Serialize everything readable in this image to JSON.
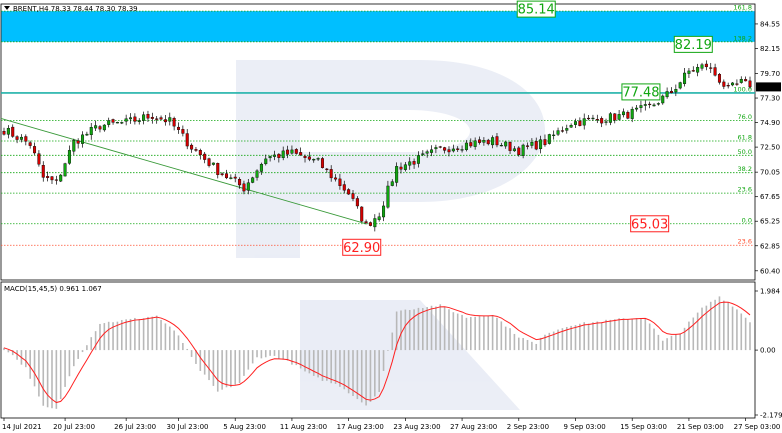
{
  "header": {
    "symbol_line": "BRENT,H4  78.33 78.44 78.30 78.39"
  },
  "macd_header": "MACD(15,45,5) 0.961 1.067",
  "colors": {
    "bull": "#11a611",
    "bear": "#d40000",
    "fib": "#11a611",
    "blue_zone": "#00bfff",
    "hline": "#20b2aa",
    "trend": "#3a9a3a",
    "macd_bar": "#b8b8b8",
    "signal": "#ff2020"
  },
  "chart_data": {
    "type": "candlestick",
    "title": "",
    "y_axis": {
      "min": 59.5,
      "max": 86.5,
      "ticks": [
        "84.55",
        "82.15",
        "79.70",
        "77.30",
        "74.90",
        "72.50",
        "70.05",
        "67.65",
        "65.25",
        "62.85",
        "60.40"
      ]
    },
    "x_axis": {
      "ticks": [
        "14 Jul 2021",
        "20 Jul 23:00",
        "26 Jul 23:00",
        "30 Jul 23:00",
        "5 Aug 23:00",
        "11 Aug 23:00",
        "17 Aug 23:00",
        "23 Aug 23:00",
        "27 Aug 23:00",
        "2 Sep 23:00",
        "9 Sep 03:00",
        "15 Sep 03:00",
        "21 Sep 03:00",
        "27 Sep 03:00"
      ]
    },
    "current_price": "78.39",
    "horizontal_line": 77.8,
    "blue_zone": {
      "from": 82.8,
      "to": 85.8
    },
    "fib_levels": [
      {
        "label": "161.8",
        "value": 85.8,
        "color": "#11a611"
      },
      {
        "label": "138.2",
        "value": 82.8,
        "color": "#11a611"
      },
      {
        "label": "100.0",
        "value": 77.8,
        "color": "#11a611"
      },
      {
        "label": "76.0",
        "value": 75.1,
        "color": "#11a611"
      },
      {
        "label": "61.8",
        "value": 73.1,
        "color": "#11a611"
      },
      {
        "label": "50.0",
        "value": 71.7,
        "color": "#11a611"
      },
      {
        "label": "38.2",
        "value": 70.0,
        "color": "#11a611"
      },
      {
        "label": "23.6",
        "value": 68.0,
        "color": "#11a611"
      },
      {
        "label": "0.0",
        "value": 65.0,
        "color": "#11a611"
      },
      {
        "label": "23.6",
        "value": 62.9,
        "color": "#ff5030"
      }
    ],
    "boxes": [
      {
        "text": "85.14",
        "price": 86.0,
        "xi": 122,
        "color": "#11a611"
      },
      {
        "text": "82.19",
        "price": 82.55,
        "xi": 158,
        "color": "#11a611"
      },
      {
        "text": "77.48",
        "price": 77.9,
        "xi": 146,
        "color": "#11a611"
      },
      {
        "text": "65.03",
        "price": 65.0,
        "xi": 148,
        "color": "#ff2020"
      },
      {
        "text": "62.90",
        "price": 62.7,
        "xi": 82,
        "color": "#ff2020"
      }
    ],
    "anchors": [
      [
        0,
        74.2
      ],
      [
        6,
        72.8
      ],
      [
        9,
        69.5
      ],
      [
        12,
        69.0
      ],
      [
        16,
        73.0
      ],
      [
        22,
        74.6
      ],
      [
        28,
        74.9
      ],
      [
        34,
        75.6
      ],
      [
        38,
        75.0
      ],
      [
        43,
        72.5
      ],
      [
        49,
        70.2
      ],
      [
        55,
        68.5
      ],
      [
        60,
        71.5
      ],
      [
        66,
        71.9
      ],
      [
        72,
        71.0
      ],
      [
        79,
        68.0
      ],
      [
        83,
        64.8
      ],
      [
        86,
        66.0
      ],
      [
        90,
        70.5
      ],
      [
        95,
        71.3
      ],
      [
        100,
        72.3
      ],
      [
        106,
        72.8
      ],
      [
        112,
        73.1
      ],
      [
        118,
        72.2
      ],
      [
        124,
        73.0
      ],
      [
        130,
        74.9
      ],
      [
        136,
        75.2
      ],
      [
        142,
        75.6
      ],
      [
        148,
        76.4
      ],
      [
        153,
        77.9
      ],
      [
        157,
        79.9
      ],
      [
        161,
        80.5
      ],
      [
        163,
        79.6
      ],
      [
        166,
        78.1
      ],
      [
        169,
        78.8
      ],
      [
        171,
        78.39
      ]
    ],
    "macd": {
      "range": [
        -2.179,
        1.984
      ],
      "ticks": [
        "1.984",
        "0.00",
        "-2.179"
      ],
      "anchors": [
        [
          0,
          0.1
        ],
        [
          5,
          -0.6
        ],
        [
          9,
          -1.9
        ],
        [
          12,
          -2.0
        ],
        [
          16,
          -0.5
        ],
        [
          22,
          0.9
        ],
        [
          30,
          1.05
        ],
        [
          35,
          1.15
        ],
        [
          40,
          0.5
        ],
        [
          44,
          -0.5
        ],
        [
          49,
          -1.4
        ],
        [
          54,
          -1.1
        ],
        [
          58,
          -0.25
        ],
        [
          62,
          -0.2
        ],
        [
          66,
          -0.45
        ],
        [
          71,
          -0.9
        ],
        [
          77,
          -1.2
        ],
        [
          83,
          -1.85
        ],
        [
          86,
          -1.4
        ],
        [
          90,
          1.3
        ],
        [
          96,
          1.45
        ],
        [
          100,
          1.5
        ],
        [
          106,
          1.1
        ],
        [
          112,
          1.2
        ],
        [
          118,
          0.45
        ],
        [
          122,
          0.2
        ],
        [
          124,
          0.55
        ],
        [
          130,
          0.85
        ],
        [
          136,
          0.95
        ],
        [
          142,
          1.05
        ],
        [
          147,
          1.1
        ],
        [
          151,
          0.3
        ],
        [
          155,
          0.6
        ],
        [
          160,
          1.4
        ],
        [
          164,
          1.8
        ],
        [
          167,
          1.5
        ],
        [
          171,
          0.961
        ]
      ]
    }
  }
}
